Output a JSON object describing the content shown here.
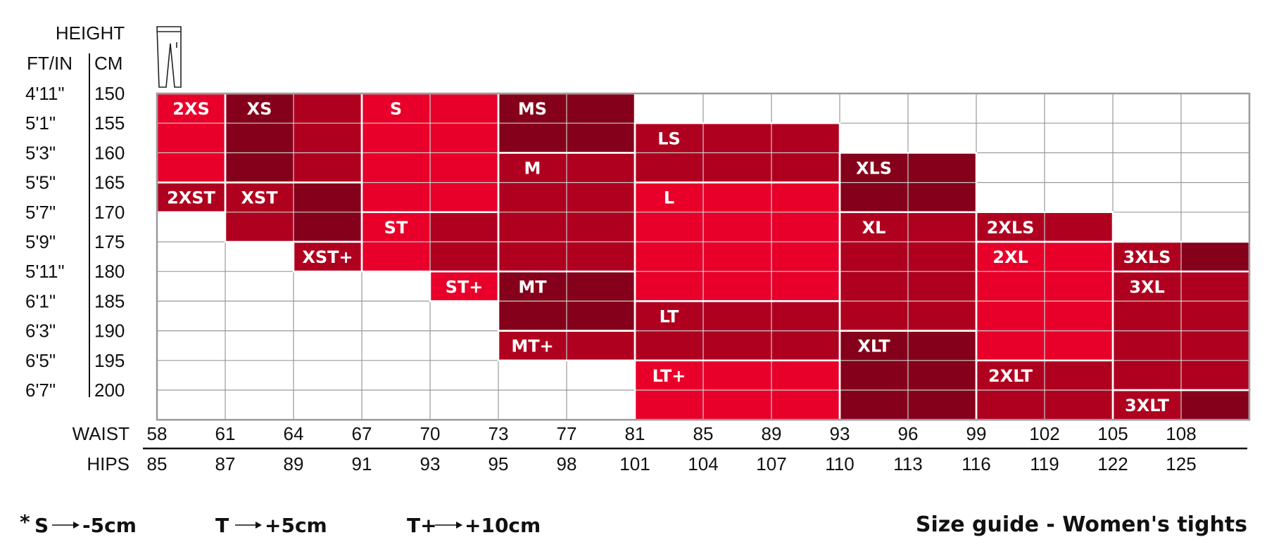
{
  "chart_data": {
    "type": "table",
    "title": "Size guide - Women's tights",
    "height_header": "HEIGHT",
    "ft_in_header": "FT/IN",
    "cm_header": "CM",
    "height_ft_in": [
      "4'11\"",
      "5'1\"",
      "5'3\"",
      "5'5\"",
      "5'7\"",
      "5'9\"",
      "5'11\"",
      "6'1\"",
      "6'3\"",
      "6'5\"",
      "6'7\""
    ],
    "height_cm": [
      150,
      155,
      160,
      165,
      170,
      175,
      180,
      185,
      190,
      195,
      200
    ],
    "waist_label": "WAIST",
    "waist": [
      58,
      61,
      64,
      67,
      70,
      73,
      77,
      81,
      85,
      89,
      93,
      96,
      99,
      102,
      105,
      108
    ],
    "hips_label": "HIPS",
    "hips": [
      85,
      87,
      89,
      91,
      93,
      95,
      98,
      101,
      104,
      107,
      110,
      113,
      116,
      119,
      122,
      125
    ],
    "colors": {
      "bright": "#e8002a",
      "mid": "#b0001f",
      "dark": "#85001a",
      "grid": "#9a9a9a"
    },
    "sizes": [
      {
        "label": "2XS",
        "col": 0,
        "row": 0,
        "cols": 1,
        "rows": 3,
        "shade": [
          "bright"
        ]
      },
      {
        "label": "2XST",
        "col": 0,
        "row": 3,
        "cols": 1,
        "rows": 1,
        "shade": [
          "mid"
        ]
      },
      {
        "label": "XS",
        "col": 1,
        "row": 0,
        "cols": 2,
        "rows": 3,
        "shade": [
          "dark",
          "mid"
        ]
      },
      {
        "label": "XST",
        "col": 1,
        "row": 3,
        "cols": 2,
        "rows": 2,
        "shade": [
          "mid",
          "dark"
        ]
      },
      {
        "label": "XST+",
        "col": 2,
        "row": 5,
        "cols": 1,
        "rows": 1,
        "shade": [
          "mid"
        ]
      },
      {
        "label": "S",
        "col": 3,
        "row": 0,
        "cols": 2,
        "rows": 4,
        "shade": [
          "bright",
          "bright"
        ]
      },
      {
        "label": "ST",
        "col": 3,
        "row": 4,
        "cols": 2,
        "rows": 2,
        "shade": [
          "bright",
          "mid"
        ]
      },
      {
        "label": "ST+",
        "col": 4,
        "row": 6,
        "cols": 1,
        "rows": 1,
        "shade": [
          "bright"
        ]
      },
      {
        "label": "MS",
        "col": 5,
        "row": 0,
        "cols": 2,
        "rows": 2,
        "shade": [
          "dark",
          "dark"
        ]
      },
      {
        "label": "M",
        "col": 5,
        "row": 2,
        "cols": 2,
        "rows": 4,
        "shade": [
          "mid",
          "mid"
        ]
      },
      {
        "label": "MT",
        "col": 5,
        "row": 6,
        "cols": 2,
        "rows": 2,
        "shade": [
          "dark",
          "dark"
        ]
      },
      {
        "label": "MT+",
        "col": 5,
        "row": 8,
        "cols": 2,
        "rows": 1,
        "shade": [
          "mid",
          "mid"
        ]
      },
      {
        "label": "LS",
        "col": 7,
        "row": 1,
        "cols": 3,
        "rows": 2,
        "shade": [
          "mid",
          "mid",
          "mid"
        ]
      },
      {
        "label": "L",
        "col": 7,
        "row": 3,
        "cols": 3,
        "rows": 4,
        "shade": [
          "bright",
          "bright",
          "bright"
        ]
      },
      {
        "label": "LT",
        "col": 7,
        "row": 7,
        "cols": 3,
        "rows": 2,
        "shade": [
          "mid",
          "mid",
          "mid"
        ]
      },
      {
        "label": "LT+",
        "col": 7,
        "row": 9,
        "cols": 3,
        "rows": 2,
        "shade": [
          "bright",
          "bright",
          "bright"
        ]
      },
      {
        "label": "XLS",
        "col": 10,
        "row": 2,
        "cols": 2,
        "rows": 2,
        "shade": [
          "dark",
          "dark"
        ]
      },
      {
        "label": "XL",
        "col": 10,
        "row": 4,
        "cols": 2,
        "rows": 4,
        "shade": [
          "mid",
          "mid"
        ]
      },
      {
        "label": "XLT",
        "col": 10,
        "row": 8,
        "cols": 2,
        "rows": 3,
        "shade": [
          "dark",
          "dark"
        ]
      },
      {
        "label": "2XLS",
        "col": 12,
        "row": 4,
        "cols": 2,
        "rows": 1,
        "shade": [
          "mid",
          "mid"
        ]
      },
      {
        "label": "2XL",
        "col": 12,
        "row": 5,
        "cols": 2,
        "rows": 4,
        "shade": [
          "bright",
          "bright"
        ]
      },
      {
        "label": "2XLT",
        "col": 12,
        "row": 9,
        "cols": 2,
        "rows": 2,
        "shade": [
          "mid",
          "mid"
        ]
      },
      {
        "label": "3XLS",
        "col": 14,
        "row": 5,
        "cols": 2,
        "rows": 1,
        "shade": [
          "mid",
          "dark"
        ]
      },
      {
        "label": "3XL",
        "col": 14,
        "row": 6,
        "cols": 2,
        "rows": 4,
        "shade": [
          "mid",
          "mid"
        ]
      },
      {
        "label": "3XLT",
        "col": 14,
        "row": 10,
        "cols": 2,
        "rows": 1,
        "shade": [
          "mid",
          "dark"
        ]
      }
    ]
  },
  "legend": {
    "asterisk": "*",
    "items": [
      {
        "key": "S",
        "value": "-5cm"
      },
      {
        "key": "T",
        "value": "+5cm"
      },
      {
        "key": "T+",
        "value": "+10cm"
      }
    ]
  },
  "icons": {
    "garment": "tights-icon",
    "arrow": "arrow-right-icon"
  }
}
